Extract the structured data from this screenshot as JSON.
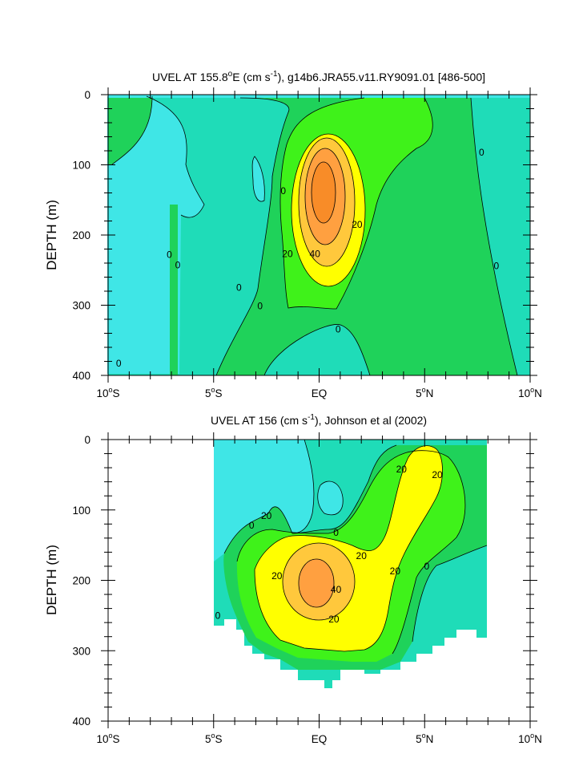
{
  "chart_data": [
    {
      "type": "contour",
      "id": "model",
      "title_base": "UVEL AT 155.8",
      "title_sup": "o",
      "title_mid": "E (cm s",
      "title_unit_sup": "-1",
      "title_tail": "), g14b6.JRA55.v11.RY9091.01 [486-500]",
      "ylabel": "DEPTH (m)",
      "xlim": [
        -10,
        10
      ],
      "ylim": [
        0,
        400
      ],
      "x_ticks": [
        {
          "value": -10,
          "num": "10",
          "deg": "o",
          "hem": "S"
        },
        {
          "value": -5,
          "num": "5",
          "deg": "o",
          "hem": "S"
        },
        {
          "value": 0,
          "num": "EQ",
          "deg": "",
          "hem": ""
        },
        {
          "value": 5,
          "num": "5",
          "deg": "o",
          "hem": "N"
        },
        {
          "value": 10,
          "num": "10",
          "deg": "o",
          "hem": "N"
        }
      ],
      "y_ticks": [
        0,
        100,
        200,
        300,
        400
      ],
      "contour_levels": [
        -20,
        -10,
        0,
        10,
        20,
        30,
        40,
        50
      ],
      "contour_labels": [
        {
          "text": "0",
          "lat": -9.5,
          "depth": 383
        },
        {
          "text": "0",
          "lat": -7.1,
          "depth": 228
        },
        {
          "text": "0",
          "lat": -6.7,
          "depth": 243
        },
        {
          "text": "0",
          "lat": -3.8,
          "depth": 275
        },
        {
          "text": "0",
          "lat": -2.8,
          "depth": 301
        },
        {
          "text": "0",
          "lat": -1.7,
          "depth": 137
        },
        {
          "text": "0",
          "lat": 0.9,
          "depth": 334
        },
        {
          "text": "0",
          "lat": 7.7,
          "depth": 82
        },
        {
          "text": "0",
          "lat": 8.4,
          "depth": 244
        },
        {
          "text": "20",
          "lat": -1.5,
          "depth": 227
        },
        {
          "text": "40",
          "lat": -0.2,
          "depth": 227
        },
        {
          "text": "20",
          "lat": 1.8,
          "depth": 185
        }
      ]
    },
    {
      "type": "contour",
      "id": "obs",
      "title_base": "UVEL AT 156 (cm s",
      "title_unit_sup": "-1",
      "title_tail": "), Johnson et al (2002)",
      "ylabel": "DEPTH (m)",
      "xlim": [
        -10,
        10
      ],
      "ylim": [
        0,
        400
      ],
      "data_coverage_lat": [
        -5,
        8
      ],
      "x_ticks": [
        {
          "value": -10,
          "num": "10",
          "deg": "o",
          "hem": "S"
        },
        {
          "value": -5,
          "num": "5",
          "deg": "o",
          "hem": "S"
        },
        {
          "value": 0,
          "num": "EQ",
          "deg": "",
          "hem": ""
        },
        {
          "value": 5,
          "num": "5",
          "deg": "o",
          "hem": "N"
        },
        {
          "value": 10,
          "num": "10",
          "deg": "o",
          "hem": "N"
        }
      ],
      "y_ticks": [
        0,
        100,
        200,
        300,
        400
      ],
      "contour_levels": [
        -20,
        -10,
        0,
        10,
        20,
        30,
        40
      ],
      "contour_labels": [
        {
          "text": "20",
          "lat": 3.9,
          "depth": 42
        },
        {
          "text": "20",
          "lat": 5.6,
          "depth": 50
        },
        {
          "text": "20",
          "lat": -2.5,
          "depth": 108
        },
        {
          "text": "0",
          "lat": -3.2,
          "depth": 122
        },
        {
          "text": "0",
          "lat": 0.8,
          "depth": 132
        },
        {
          "text": "20",
          "lat": 2.0,
          "depth": 165
        },
        {
          "text": "20",
          "lat": -2.0,
          "depth": 194
        },
        {
          "text": "40",
          "lat": 0.8,
          "depth": 213
        },
        {
          "text": "20",
          "lat": 3.6,
          "depth": 187
        },
        {
          "text": "0",
          "lat": 5.1,
          "depth": 180
        },
        {
          "text": "0",
          "lat": -4.8,
          "depth": 250
        },
        {
          "text": "20",
          "lat": 0.7,
          "depth": 255
        }
      ]
    }
  ],
  "colors": {
    "c_m20": "#3FE6E6",
    "c_m10": "#1FDCB8",
    "c_0": "#1FD25A",
    "c_10": "#3FF21A",
    "c_20": "#FFFF00",
    "c_30": "#FFC83C",
    "c_40": "#FFA040",
    "c_50": "#F88C28"
  }
}
